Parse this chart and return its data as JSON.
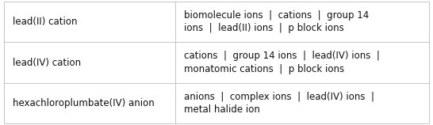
{
  "rows": [
    {
      "left": "lead(II) cation",
      "right": "biomolecule ions  |  cations  |  group 14\nions  |  lead(II) ions  |  p block ions"
    },
    {
      "left": "lead(IV) cation",
      "right": "cations  |  group 14 ions  |  lead(IV) ions  |\nmonatomic cations  |  p block ions"
    },
    {
      "left": "hexachloroplumbate(IV) anion",
      "right": "anions  |  complex ions  |  lead(IV) ions  |\nmetal halide ion"
    }
  ],
  "col_split": 0.405,
  "background_color": "#ffffff",
  "border_color": "#bbbbbb",
  "text_color": "#111111",
  "font_size": 8.5
}
